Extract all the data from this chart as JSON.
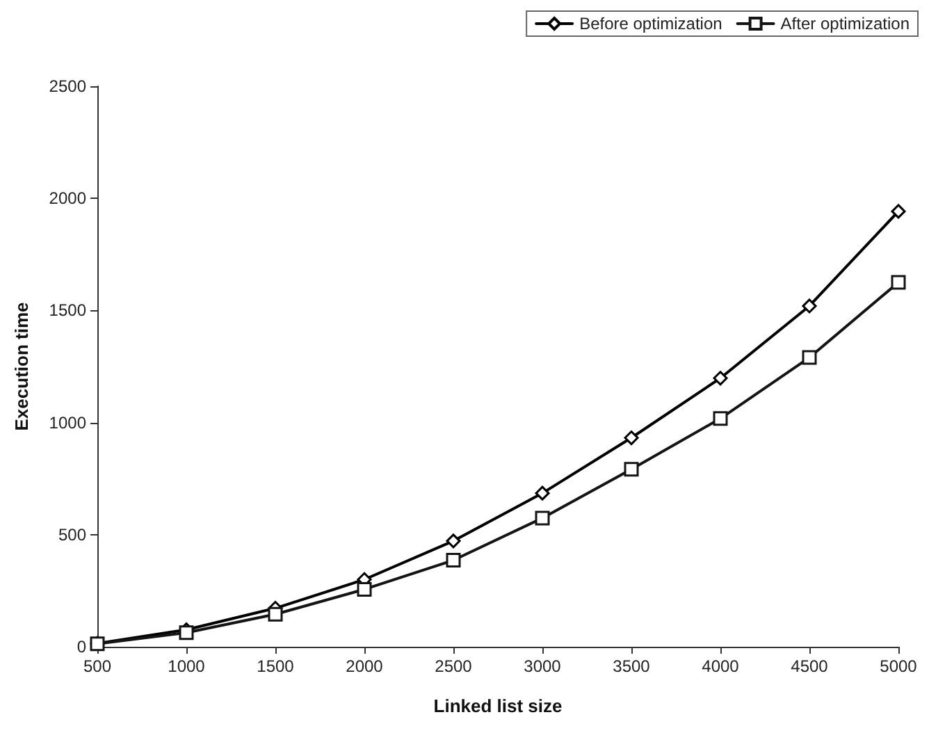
{
  "chart_data": {
    "type": "line",
    "xlabel": "Linked list size",
    "ylabel": "Execution time",
    "categories": [
      "500",
      "1000",
      "1500",
      "2000",
      "2500",
      "3000",
      "3500",
      "4000",
      "4500",
      "5000"
    ],
    "series": [
      {
        "name": "Before optimization",
        "color": "#000000",
        "marker": "diamond",
        "values": [
          15,
          76,
          172,
          300,
          472,
          685,
          932,
          1198,
          1520,
          1942
        ]
      },
      {
        "name": "After optimization",
        "color": "#141414",
        "marker": "square",
        "values": [
          13,
          63,
          145,
          256,
          386,
          574,
          792,
          1018,
          1290,
          1625
        ]
      }
    ],
    "ylim": [
      0,
      2500
    ],
    "yticks": [
      0,
      500,
      1000,
      1500,
      2000,
      2500
    ],
    "grid": false,
    "legend": "top right",
    "line_style": "solid"
  }
}
